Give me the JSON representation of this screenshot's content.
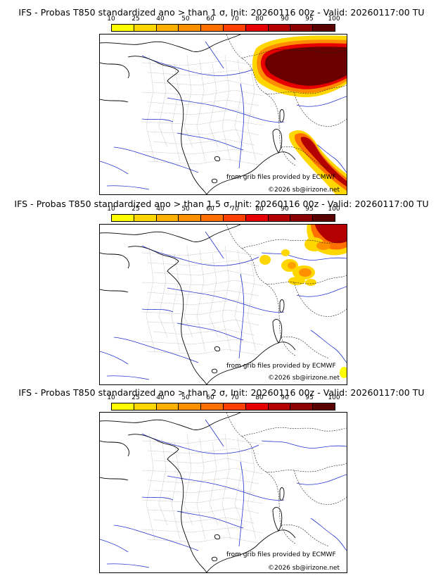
{
  "colorbar": {
    "labels": [
      "10",
      "25",
      "40",
      "50",
      "60",
      "70",
      "80",
      "90",
      "95",
      "100"
    ],
    "colors": [
      "#ffff00",
      "#ffd700",
      "#ffb000",
      "#ff9000",
      "#ff7000",
      "#ff4000",
      "#e60000",
      "#b40000",
      "#8b0000",
      "#5a0000"
    ]
  },
  "panels": [
    {
      "title": "IFS - Probas T850  standardized ano > than 1 σ, Init: 20260116 00z - Valid: 20260117:00 TU",
      "source_credit": "from grib files provided by ECMWF",
      "copyright": "©2026 sb@irizone.net"
    },
    {
      "title": "IFS - Probas T850  standardized ano > than 1.5 σ, Init: 20260116 00z - Valid: 20260117:00 TU",
      "source_credit": "from grib files provided by ECMWF",
      "copyright": "©2026 sb@irizone.net"
    },
    {
      "title": "IFS - Probas T850  standardized ano > than 2 σ, Init: 20260116 00z - Valid: 20260117:00 TU",
      "source_credit": "from grib files provided by ECMWF",
      "copyright": "©2026 sb@irizone.net"
    }
  ]
}
